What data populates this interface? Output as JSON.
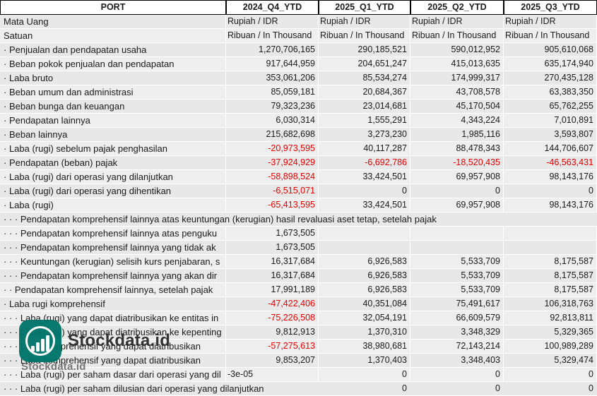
{
  "table": {
    "columns": [
      "PORT",
      "2024_Q4_YTD",
      "2025_Q1_YTD",
      "2025_Q2_YTD",
      "2025_Q3_YTD"
    ],
    "rows": [
      {
        "label": "Mata Uang",
        "values": [
          "Rupiah / IDR",
          "Rupiah / IDR",
          "Rupiah / IDR",
          "Rupiah / IDR"
        ],
        "valuesAlign": "left"
      },
      {
        "label": "Satuan",
        "values": [
          "Ribuan / In Thousand",
          "Ribuan / In Thousand",
          "Ribuan / In Thousand",
          "Ribuan / In Thousand"
        ],
        "valuesAlign": "left"
      },
      {
        "label": "· Penjualan dan pendapatan usaha",
        "values": [
          "1,270,706,165",
          "290,185,521",
          "590,012,952",
          "905,610,068"
        ]
      },
      {
        "label": "· Beban pokok penjualan dan pendapatan",
        "values": [
          "917,644,959",
          "204,651,247",
          "415,013,635",
          "635,174,940"
        ]
      },
      {
        "label": "· Laba bruto",
        "values": [
          "353,061,206",
          "85,534,274",
          "174,999,317",
          "270,435,128"
        ]
      },
      {
        "label": "· Beban umum dan administrasi",
        "values": [
          "85,059,181",
          "20,684,367",
          "43,708,578",
          "63,383,350"
        ]
      },
      {
        "label": "· Beban bunga dan keuangan",
        "values": [
          "79,323,236",
          "23,014,681",
          "45,170,504",
          "65,762,255"
        ]
      },
      {
        "label": "· Pendapatan lainnya",
        "values": [
          "6,030,314",
          "1,555,291",
          "4,343,224",
          "7,010,891"
        ]
      },
      {
        "label": "· Beban lainnya",
        "values": [
          "215,682,698",
          "3,273,230",
          "1,985,116",
          "3,593,807"
        ]
      },
      {
        "label": "· Laba (rugi) sebelum pajak penghasilan",
        "values": [
          "-20,973,595",
          "40,117,287",
          "88,478,343",
          "144,706,607"
        ],
        "redCells": [
          0
        ]
      },
      {
        "label": "· Pendapatan (beban) pajak",
        "values": [
          "-37,924,929",
          "-6,692,786",
          "-18,520,435",
          "-46,563,431"
        ],
        "redCells": [
          0,
          1,
          2,
          3
        ]
      },
      {
        "label": "· Laba (rugi) dari operasi yang dilanjutkan",
        "values": [
          "-58,898,524",
          "33,424,501",
          "69,957,908",
          "98,143,176"
        ],
        "redCells": [
          0
        ]
      },
      {
        "label": "· Laba (rugi) dari operasi yang dihentikan",
        "values": [
          "-6,515,071",
          "0",
          "0",
          "0"
        ],
        "redCells": [
          0
        ]
      },
      {
        "label": "· Laba (rugi)",
        "values": [
          "-65,413,595",
          "33,424,501",
          "69,957,908",
          "98,143,176"
        ],
        "redCells": [
          0
        ]
      },
      {
        "label": "· · · Pendapatan komprehensif lainnya atas keuntungan (kerugian) hasil revaluasi aset tetap, setelah pajak",
        "values": [
          "",
          "",
          "",
          ""
        ],
        "overflow": true
      },
      {
        "label": "· · · Pendapatan komprehensif lainnya atas penguku",
        "values": [
          "1,673,505",
          "",
          "",
          ""
        ]
      },
      {
        "label": "· · · Pendapatan komprehensif lainnya yang tidak ak",
        "values": [
          "1,673,505",
          "",
          "",
          ""
        ]
      },
      {
        "label": "· · · Keuntungan (kerugian) selisih kurs penjabaran, s",
        "values": [
          "16,317,684",
          "6,926,583",
          "5,533,709",
          "8,175,587"
        ]
      },
      {
        "label": "· · · Pendapatan komprehensif lainnya yang akan dir",
        "values": [
          "16,317,684",
          "6,926,583",
          "5,533,709",
          "8,175,587"
        ]
      },
      {
        "label": "· · Pendapatan komprehensif lainnya, setelah pajak",
        "values": [
          "17,991,189",
          "6,926,583",
          "5,533,709",
          "8,175,587"
        ]
      },
      {
        "label": "· Laba rugi komprehensif",
        "values": [
          "-47,422,406",
          "40,351,084",
          "75,491,617",
          "106,318,763"
        ],
        "redCells": [
          0
        ]
      },
      {
        "label": "· · · Laba (rugi) yang dapat diatribusikan ke entitas in",
        "values": [
          "-75,226,508",
          "32,054,191",
          "66,609,579",
          "92,813,811"
        ],
        "redCells": [
          0
        ]
      },
      {
        "label": "· · · Laba (rugi) yang dapat diatribusikan ke kepenting",
        "values": [
          "9,812,913",
          "1,370,310",
          "3,348,329",
          "5,329,365"
        ]
      },
      {
        "label": "· · · Laba komprehensif yang dapat diatribusikan",
        "values": [
          "-57,275,613",
          "38,980,681",
          "72,143,214",
          "100,989,289"
        ],
        "redCells": [
          0
        ]
      },
      {
        "label": "· · · Laba komprehensif yang dapat diatribusikan",
        "values": [
          "9,853,207",
          "1,370,403",
          "3,348,403",
          "5,329,474"
        ]
      },
      {
        "label": "· · · Laba (rugi) per saham dasar dari operasi yang dil",
        "values": [
          "-3e-05",
          "0",
          "0",
          "0"
        ],
        "leftCells": [
          0
        ]
      },
      {
        "label": "· · · Laba (rugi) per saham dilusian dari operasi yang dilanjutkan",
        "values": [
          "",
          "0",
          "0",
          "0"
        ],
        "overflow": true
      }
    ]
  },
  "watermark": {
    "brand": "Stockdata.id",
    "sub": "Stockdata.id"
  },
  "colors": {
    "negative": "#e60000",
    "logo_teal": "#00756b",
    "row_gray": "#e8e8e8"
  }
}
